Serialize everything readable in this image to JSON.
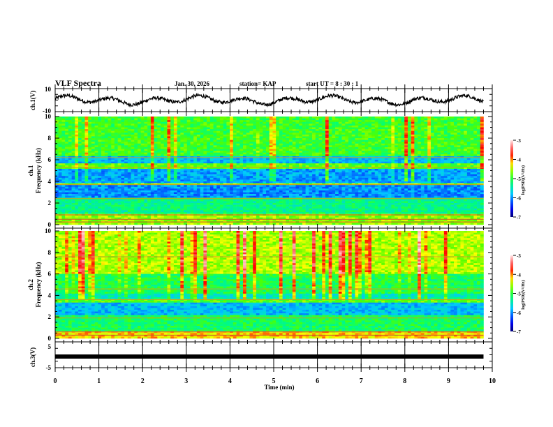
{
  "header": {
    "title": "VLF Spectra",
    "date": "Jan. 30, 2026",
    "station": "station= KAP",
    "start_ut": "start  UT =   8 : 30 : 1"
  },
  "chart_data": [
    {
      "type": "line",
      "name": "ch1-voltage",
      "ylabel": "ch.1(V)",
      "ylim": [
        -10,
        10
      ],
      "yticks": [
        "10",
        "-10"
      ],
      "xlim": [
        0,
        10
      ],
      "x_end": 9.8,
      "description_values": "wandering waveform, approx range -6 to 7 V"
    },
    {
      "type": "heatmap",
      "name": "ch1-spectrogram",
      "ylabel_line1": "ch.1",
      "ylabel_line2": "Frequency  (kHz)",
      "ylim": [
        0,
        10
      ],
      "yticks": [
        "0",
        "2",
        "4",
        "6",
        "8",
        "10"
      ],
      "xlim": [
        0,
        10
      ],
      "colorbar": {
        "label": "log(PSD)(V²/Hz)",
        "range": [
          -7,
          -3
        ],
        "ticks": [
          "-3",
          "-4",
          "-5",
          "-6",
          "-7"
        ]
      }
    },
    {
      "type": "heatmap",
      "name": "ch2-spectrogram",
      "ylabel_line1": "ch.2",
      "ylabel_line2": "Frequency  (kHz)",
      "ylim": [
        0,
        10
      ],
      "yticks": [
        "0",
        "2",
        "4",
        "6",
        "8",
        "10"
      ],
      "xlim": [
        0,
        10
      ],
      "colorbar": {
        "label": "log(PSD)(V²/Hz)",
        "range": [
          -7,
          -3
        ],
        "ticks": [
          "-3",
          "-4",
          "-5",
          "-6",
          "-7"
        ]
      }
    },
    {
      "type": "line",
      "name": "ch3-voltage",
      "ylabel": "ch.3(V)",
      "ylim": [
        -5,
        5
      ],
      "yticks": [
        "5",
        "-5"
      ],
      "level": 0,
      "xlim": [
        0,
        10
      ],
      "x_end": 9.8
    }
  ],
  "xaxis": {
    "label": "Time  (min)",
    "ticks": [
      "0",
      "1",
      "2",
      "3",
      "4",
      "5",
      "6",
      "7",
      "8",
      "9",
      "10"
    ]
  }
}
